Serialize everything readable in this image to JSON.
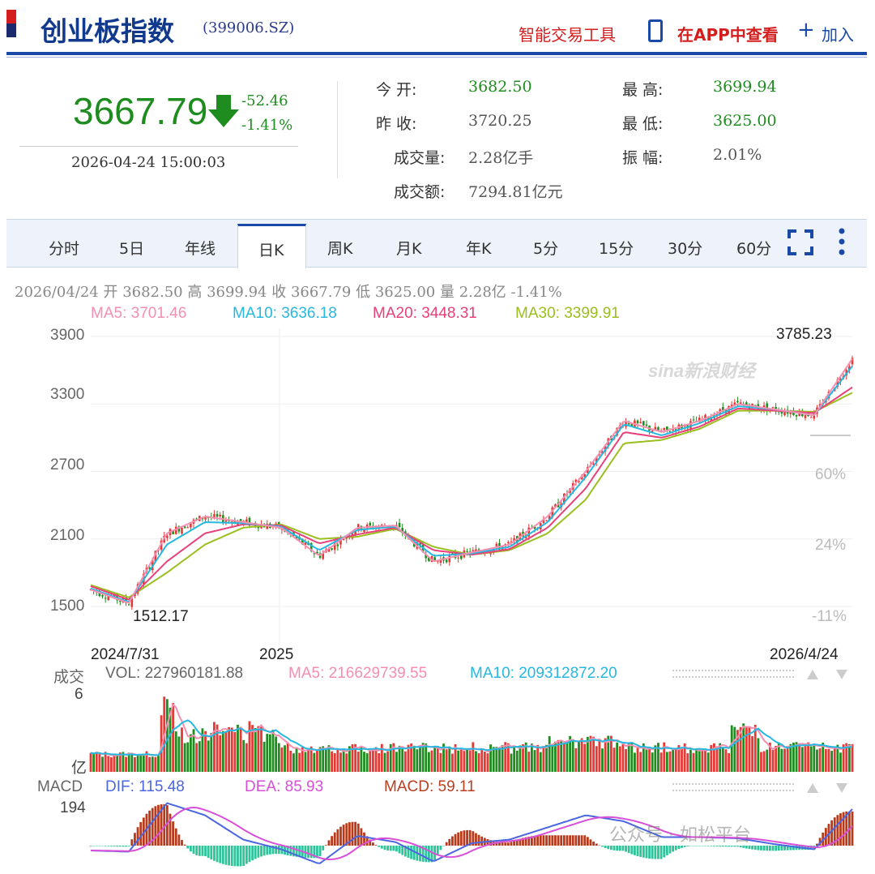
{
  "header": {
    "title": "创业板指数",
    "code": "(399006.SZ)",
    "tool_link": "智能交易工具",
    "app_link": "在APP中查看",
    "add_label": "加入"
  },
  "quote": {
    "price": "3667.79",
    "change": "-52.46",
    "change_pct": "-1.41%",
    "datetime": "2026-04-24  15:00:03",
    "fields": {
      "open_label": "今      开:",
      "open": "3682.50",
      "prev_label": "昨      收:",
      "prev": "3720.25",
      "vol_label": "成交量:",
      "vol": "2.28亿手",
      "amt_label": "成交额:",
      "amt": "7294.81亿元",
      "high_label": "最      高:",
      "high": "3699.94",
      "low_label": "最      低:",
      "low": "3625.00",
      "amp_label": "振      幅:",
      "amp": "2.01%"
    }
  },
  "tabs": [
    "分时",
    "5日",
    "年线",
    "日K",
    "周K",
    "月K",
    "年K",
    "5分",
    "15分",
    "30分",
    "60分"
  ],
  "active_tab": "日K",
  "chart_info": {
    "line": "2026/04/24 开 3682.50 高 3699.94 收 3667.79 低 3625.00 量 2.28亿 -1.41%",
    "ma5": "MA5: 3701.46",
    "ma10": "MA10: 3636.18",
    "ma20": "MA20: 3448.31",
    "ma30": "MA30: 3399.91",
    "watermark": "sina新浪财经"
  },
  "chart_data": {
    "type": "line",
    "title": "",
    "y_ticks": [
      "3900",
      "3300",
      "2700",
      "2100",
      "1500"
    ],
    "pct_ticks": [
      "60%",
      "24%",
      "-11%"
    ],
    "x_labels": [
      "2024/7/31",
      "2025",
      "2026/4/24"
    ],
    "max_label": "3785.23",
    "min_label": "1512.17",
    "ylim": [
      1500,
      3900
    ],
    "x": [
      "2024/7/31",
      "2024/9/20",
      "2024/10/8",
      "2024/10/15",
      "2024/11/10",
      "2024/12/31",
      "2025/1/13",
      "2025/2/20",
      "2025/3/20",
      "2025/4/7",
      "2025/5/10",
      "2025/6/30",
      "2025/8/1",
      "2025/9/1",
      "2025/10/1",
      "2025/11/21",
      "2026/1/10",
      "2026/2/15",
      "2026/3/10",
      "2026/4/1",
      "2026/4/24"
    ],
    "series": [
      {
        "name": "MA5",
        "color": "#f48fb1",
        "values": [
          1650,
          1530,
          2150,
          2300,
          2250,
          2200,
          1950,
          2200,
          2220,
          1900,
          1980,
          2050,
          2300,
          2700,
          3150,
          3050,
          3150,
          3300,
          3250,
          3200,
          3701
        ]
      },
      {
        "name": "MA10",
        "color": "#26b8e0",
        "values": [
          1660,
          1540,
          2050,
          2250,
          2240,
          2210,
          2000,
          2180,
          2210,
          1950,
          1970,
          2030,
          2250,
          2650,
          3120,
          3020,
          3130,
          3280,
          3250,
          3200,
          3636
        ]
      },
      {
        "name": "MA20",
        "color": "#e8407a",
        "values": [
          1680,
          1560,
          1900,
          2150,
          2230,
          2220,
          2060,
          2140,
          2200,
          2000,
          1960,
          2010,
          2200,
          2550,
          3050,
          3000,
          3100,
          3260,
          3240,
          3220,
          3448
        ]
      },
      {
        "name": "MA30",
        "color": "#9abf1e",
        "values": [
          1690,
          1580,
          1800,
          2050,
          2200,
          2230,
          2100,
          2120,
          2190,
          2030,
          1960,
          2000,
          2150,
          2450,
          2950,
          2980,
          3080,
          3240,
          3240,
          3230,
          3400
        ]
      }
    ]
  },
  "volume": {
    "label": "成交",
    "vol": "VOL: 227960181.88",
    "ma5": "MA5: 216629739.55",
    "ma10": "MA10: 209312872.20",
    "y_top": "6",
    "y_unit": "亿"
  },
  "macd": {
    "label": "MACD",
    "dif": "DIF: 115.48",
    "dea": "DEA: 85.93",
    "macd": "MACD: 59.11",
    "y_top": "194"
  },
  "watermark2": "公众号 · 如松平台",
  "colors": {
    "up": "#e53935",
    "down": "#1f8c1f",
    "brand": "#1a4aa8"
  }
}
